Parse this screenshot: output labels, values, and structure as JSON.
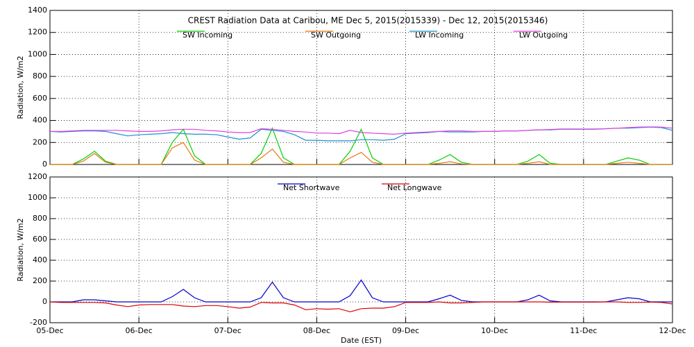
{
  "chart_data": [
    {
      "type": "line",
      "title": "CREST Radiation Data at Caribou, ME   Dec  5, 2015(2015339) - Dec 12, 2015(2015346)",
      "ylabel": "Radiation, W/m2",
      "x": [
        0,
        0.125,
        0.25,
        0.375,
        0.5,
        0.625,
        0.75,
        0.875,
        1,
        1.125,
        1.25,
        1.375,
        1.5,
        1.625,
        1.75,
        1.875,
        2,
        2.125,
        2.25,
        2.375,
        2.5,
        2.625,
        2.75,
        2.875,
        3,
        3.125,
        3.25,
        3.375,
        3.5,
        3.625,
        3.75,
        3.875,
        4,
        4.125,
        4.25,
        4.375,
        4.5,
        4.625,
        4.75,
        4.875,
        5,
        5.125,
        5.25,
        5.375,
        5.5,
        5.625,
        5.75,
        5.875,
        6,
        6.125,
        6.25,
        6.375,
        6.5,
        6.625,
        6.75,
        6.875,
        7
      ],
      "xlim": [
        0,
        7
      ],
      "xticks": [
        0,
        1,
        2,
        3,
        4,
        5,
        6,
        7
      ],
      "ylim": [
        0,
        1400
      ],
      "yticks": [
        0,
        200,
        400,
        600,
        800,
        1000,
        1200,
        1400
      ],
      "grid": true,
      "series": [
        {
          "name": "SW Incoming",
          "color": "#00d000",
          "values": [
            0,
            0,
            0,
            50,
            120,
            30,
            0,
            0,
            0,
            0,
            0,
            200,
            320,
            80,
            0,
            0,
            0,
            0,
            0,
            100,
            330,
            60,
            0,
            0,
            0,
            0,
            0,
            120,
            320,
            60,
            0,
            0,
            0,
            0,
            0,
            40,
            90,
            20,
            0,
            0,
            0,
            0,
            0,
            30,
            90,
            10,
            0,
            0,
            0,
            0,
            0,
            30,
            60,
            40,
            0,
            0,
            0
          ]
        },
        {
          "name": "SW Outgoing",
          "color": "#e8760c",
          "values": [
            0,
            0,
            0,
            30,
            100,
            20,
            0,
            0,
            0,
            0,
            0,
            150,
            200,
            40,
            0,
            0,
            0,
            0,
            0,
            60,
            140,
            20,
            0,
            0,
            0,
            0,
            0,
            60,
            110,
            20,
            0,
            0,
            0,
            0,
            0,
            10,
            25,
            5,
            0,
            0,
            0,
            0,
            0,
            10,
            25,
            0,
            0,
            0,
            0,
            0,
            0,
            10,
            20,
            10,
            0,
            0,
            0
          ]
        },
        {
          "name": "LW Incoming",
          "color": "#1e90d0",
          "values": [
            300,
            295,
            300,
            305,
            305,
            300,
            280,
            260,
            270,
            275,
            280,
            290,
            280,
            275,
            275,
            270,
            250,
            230,
            240,
            320,
            310,
            300,
            270,
            220,
            220,
            215,
            215,
            215,
            225,
            225,
            220,
            230,
            280,
            285,
            290,
            300,
            295,
            295,
            295,
            300,
            300,
            305,
            305,
            310,
            315,
            315,
            320,
            320,
            320,
            320,
            325,
            330,
            330,
            335,
            340,
            335,
            310
          ]
        },
        {
          "name": "LW Outgoing",
          "color": "#e040e0",
          "values": [
            300,
            300,
            305,
            310,
            310,
            310,
            310,
            305,
            300,
            300,
            305,
            315,
            320,
            320,
            310,
            305,
            295,
            290,
            290,
            325,
            320,
            310,
            300,
            295,
            285,
            285,
            280,
            310,
            290,
            285,
            280,
            275,
            285,
            290,
            295,
            300,
            305,
            305,
            300,
            300,
            300,
            305,
            305,
            310,
            315,
            318,
            322,
            322,
            322,
            322,
            325,
            330,
            335,
            340,
            342,
            340,
            330
          ]
        }
      ]
    },
    {
      "type": "line",
      "ylabel": "Radiation, W/m2",
      "xlabel": "Date (EST)",
      "x": [
        0,
        0.125,
        0.25,
        0.375,
        0.5,
        0.625,
        0.75,
        0.875,
        1,
        1.125,
        1.25,
        1.375,
        1.5,
        1.625,
        1.75,
        1.875,
        2,
        2.125,
        2.25,
        2.375,
        2.5,
        2.625,
        2.75,
        2.875,
        3,
        3.125,
        3.25,
        3.375,
        3.5,
        3.625,
        3.75,
        3.875,
        4,
        4.125,
        4.25,
        4.375,
        4.5,
        4.625,
        4.75,
        4.875,
        5,
        5.125,
        5.25,
        5.375,
        5.5,
        5.625,
        5.75,
        5.875,
        6,
        6.125,
        6.25,
        6.375,
        6.5,
        6.625,
        6.75,
        6.875,
        7
      ],
      "xlim": [
        0,
        7
      ],
      "xticks": [
        {
          "value": 0,
          "label": "05-Dec"
        },
        {
          "value": 1,
          "label": "06-Dec"
        },
        {
          "value": 2,
          "label": "07-Dec"
        },
        {
          "value": 3,
          "label": "08-Dec"
        },
        {
          "value": 4,
          "label": "09-Dec"
        },
        {
          "value": 5,
          "label": "10-Dec"
        },
        {
          "value": 6,
          "label": "11-Dec"
        },
        {
          "value": 7,
          "label": "12-Dec"
        }
      ],
      "ylim": [
        -200,
        1200
      ],
      "yticks": [
        -200,
        0,
        200,
        400,
        600,
        800,
        1000,
        1200
      ],
      "grid": true,
      "series": [
        {
          "name": "Net Shortwave",
          "color": "#0000cc",
          "values": [
            0,
            0,
            0,
            20,
            20,
            10,
            0,
            0,
            0,
            0,
            0,
            50,
            120,
            40,
            0,
            0,
            0,
            0,
            0,
            40,
            190,
            40,
            0,
            0,
            0,
            0,
            0,
            60,
            210,
            40,
            0,
            0,
            0,
            0,
            0,
            30,
            65,
            15,
            0,
            0,
            0,
            0,
            0,
            20,
            65,
            10,
            0,
            0,
            0,
            0,
            0,
            20,
            40,
            30,
            0,
            0,
            0
          ]
        },
        {
          "name": "Net Longwave",
          "color": "#dd0000",
          "values": [
            0,
            -5,
            -5,
            -5,
            -5,
            -10,
            -30,
            -45,
            -30,
            -25,
            -25,
            -25,
            -40,
            -45,
            -35,
            -35,
            -45,
            -60,
            -50,
            -5,
            -10,
            -10,
            -30,
            -75,
            -65,
            -70,
            -65,
            -95,
            -65,
            -60,
            -60,
            -45,
            -5,
            -5,
            -5,
            0,
            -10,
            -10,
            -5,
            0,
            0,
            0,
            0,
            0,
            0,
            -3,
            -2,
            -2,
            -2,
            -2,
            0,
            0,
            -5,
            -5,
            -2,
            -5,
            -20
          ]
        }
      ]
    }
  ]
}
